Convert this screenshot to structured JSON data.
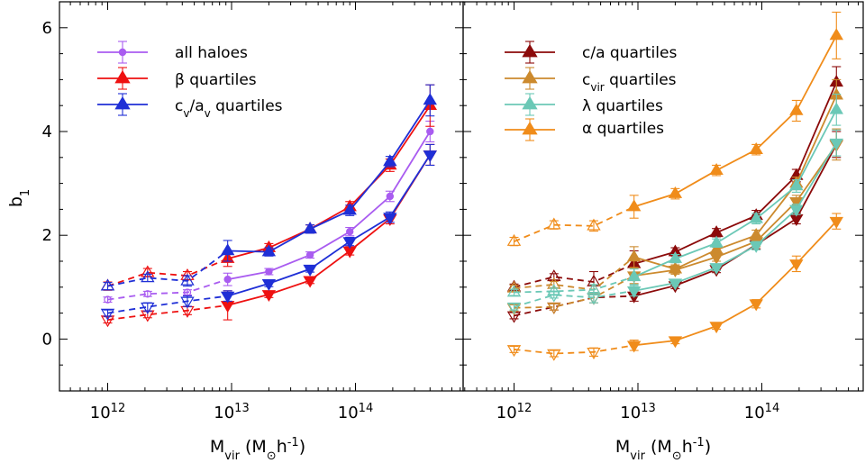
{
  "chart_data": [
    {
      "type": "line",
      "panel": "left",
      "xscale": "log",
      "xlim": [
        500000000000.0,
        650000000000000.0
      ],
      "ylim": [
        -1,
        6.5
      ],
      "xlabel": "M_vir (M⊙h⁻¹)",
      "ylabel": "b1",
      "ytick_labels": [
        "0",
        "2",
        "4",
        "6"
      ],
      "xtick_labels": [
        "10^12",
        "10^13",
        "10^14"
      ],
      "legend_position": "top-left",
      "legend": [
        "all haloes",
        "β quartiles",
        "c_v/a_v quartiles"
      ],
      "x": [
        1000000000000.0,
        2100000000000.0,
        4400000000000.0,
        9300000000000.0,
        20000000000000.0,
        43000000000000.0,
        90000000000000.0,
        190000000000000.0,
        400000000000000.0
      ],
      "series": [
        {
          "name": "all haloes",
          "color": "#a95cf0",
          "marker": "circle",
          "values": [
            0.76,
            0.87,
            0.9,
            1.15,
            1.3,
            1.62,
            2.07,
            2.75,
            4.0
          ],
          "errors": [
            0.05,
            0.05,
            0.05,
            0.12,
            0.06,
            0.06,
            0.08,
            0.1,
            0.2
          ]
        },
        {
          "name": "β quartiles (upper)",
          "color": "#ee1111",
          "marker": "triangle-up",
          "values": [
            1.02,
            1.28,
            1.22,
            1.55,
            1.76,
            2.12,
            2.55,
            3.35,
            4.5
          ],
          "errors": [
            0.08,
            0.08,
            0.08,
            0.15,
            0.08,
            0.08,
            0.1,
            0.12,
            0.4
          ]
        },
        {
          "name": "β quartiles (lower)",
          "color": "#ee1111",
          "marker": "triangle-down",
          "values": [
            0.37,
            0.47,
            0.55,
            0.65,
            0.86,
            1.13,
            1.7,
            2.32,
            3.55
          ],
          "errors": [
            0.06,
            0.06,
            0.08,
            0.28,
            0.06,
            0.06,
            0.08,
            0.1,
            0.2
          ]
        },
        {
          "name": "c_v/a_v quartiles (upper)",
          "color": "#1f2fd6",
          "marker": "triangle-up",
          "values": [
            1.02,
            1.18,
            1.12,
            1.7,
            1.68,
            2.12,
            2.48,
            3.42,
            4.6
          ],
          "errors": [
            0.07,
            0.07,
            0.1,
            0.2,
            0.08,
            0.08,
            0.1,
            0.1,
            0.3
          ]
        },
        {
          "name": "c_v/a_v quartiles (lower)",
          "color": "#1f2fd6",
          "marker": "triangle-down",
          "values": [
            0.5,
            0.62,
            0.73,
            0.83,
            1.07,
            1.35,
            1.88,
            2.35,
            3.55
          ],
          "errors": [
            0.06,
            0.08,
            0.1,
            0.1,
            0.06,
            0.06,
            0.08,
            0.1,
            0.2
          ]
        }
      ]
    },
    {
      "type": "line",
      "panel": "right",
      "xscale": "log",
      "xlim": [
        500000000000.0,
        650000000000000.0
      ],
      "ylim": [
        -1,
        6.5
      ],
      "xlabel": "M_vir (M⊙h⁻¹)",
      "xtick_labels": [
        "10^12",
        "10^13",
        "10^14"
      ],
      "legend_position": "top-left",
      "legend": [
        "c/a quartiles",
        "c_vir quartiles",
        "λ quartiles",
        "α quartiles"
      ],
      "x": [
        1000000000000.0,
        2100000000000.0,
        4400000000000.0,
        9300000000000.0,
        20000000000000.0,
        43000000000000.0,
        90000000000000.0,
        190000000000000.0,
        400000000000000.0
      ],
      "series": [
        {
          "name": "c/a quartiles (upper)",
          "color": "#8b0a0a",
          "marker": "triangle-up",
          "values": [
            1.0,
            1.2,
            1.1,
            1.45,
            1.68,
            2.05,
            2.38,
            3.15,
            4.95
          ],
          "errors": [
            0.06,
            0.06,
            0.2,
            0.25,
            0.08,
            0.08,
            0.1,
            0.12,
            0.3
          ]
        },
        {
          "name": "c/a quartiles (lower)",
          "color": "#8b0a0a",
          "marker": "triangle-down",
          "values": [
            0.45,
            0.62,
            0.8,
            0.83,
            1.03,
            1.34,
            1.82,
            2.32,
            3.75
          ],
          "errors": [
            0.06,
            0.06,
            0.1,
            0.1,
            0.06,
            0.06,
            0.08,
            0.1,
            0.25
          ]
        },
        {
          "name": "c_vir quartiles (upper)",
          "color": "#cc8a2e",
          "marker": "triangle-up",
          "values": [
            0.98,
            1.05,
            0.95,
            1.58,
            1.35,
            1.72,
            2.0,
            3.0,
            4.7
          ],
          "errors": [
            0.06,
            0.06,
            0.1,
            0.2,
            0.08,
            0.08,
            0.1,
            0.12,
            0.3
          ]
        },
        {
          "name": "c_vir quartiles (lower)",
          "color": "#cc8a2e",
          "marker": "triangle-down",
          "values": [
            0.6,
            0.62,
            0.8,
            1.22,
            1.33,
            1.58,
            1.88,
            2.65,
            3.75
          ],
          "errors": [
            0.06,
            0.06,
            0.1,
            0.15,
            0.08,
            0.08,
            0.1,
            0.12,
            0.3
          ]
        },
        {
          "name": "λ quartiles (upper)",
          "color": "#6bc8b6",
          "marker": "triangle-up",
          "values": [
            0.9,
            0.92,
            0.95,
            1.2,
            1.55,
            1.85,
            2.32,
            2.95,
            4.42
          ],
          "errors": [
            0.06,
            0.06,
            0.1,
            0.15,
            0.08,
            0.08,
            0.1,
            0.12,
            0.3
          ]
        },
        {
          "name": "λ quartiles (lower)",
          "color": "#6bc8b6",
          "marker": "triangle-down",
          "values": [
            0.62,
            0.85,
            0.8,
            0.93,
            1.08,
            1.38,
            1.8,
            2.5,
            3.78
          ],
          "errors": [
            0.06,
            0.06,
            0.1,
            0.1,
            0.06,
            0.06,
            0.08,
            0.1,
            0.25
          ]
        },
        {
          "name": "α quartiles (upper)",
          "color": "#f08c1a",
          "marker": "triangle-up",
          "values": [
            1.88,
            2.2,
            2.18,
            2.55,
            2.8,
            3.25,
            3.65,
            4.4,
            5.85
          ],
          "errors": [
            0.08,
            0.08,
            0.1,
            0.22,
            0.1,
            0.1,
            0.1,
            0.2,
            0.45
          ]
        },
        {
          "name": "α quartiles (lower)",
          "color": "#f08c1a",
          "marker": "triangle-down",
          "values": [
            -0.2,
            -0.28,
            -0.25,
            -0.12,
            -0.03,
            0.25,
            0.68,
            1.45,
            2.27
          ],
          "errors": [
            0.06,
            0.06,
            0.08,
            0.1,
            0.06,
            0.06,
            0.08,
            0.15,
            0.15
          ]
        }
      ]
    }
  ]
}
